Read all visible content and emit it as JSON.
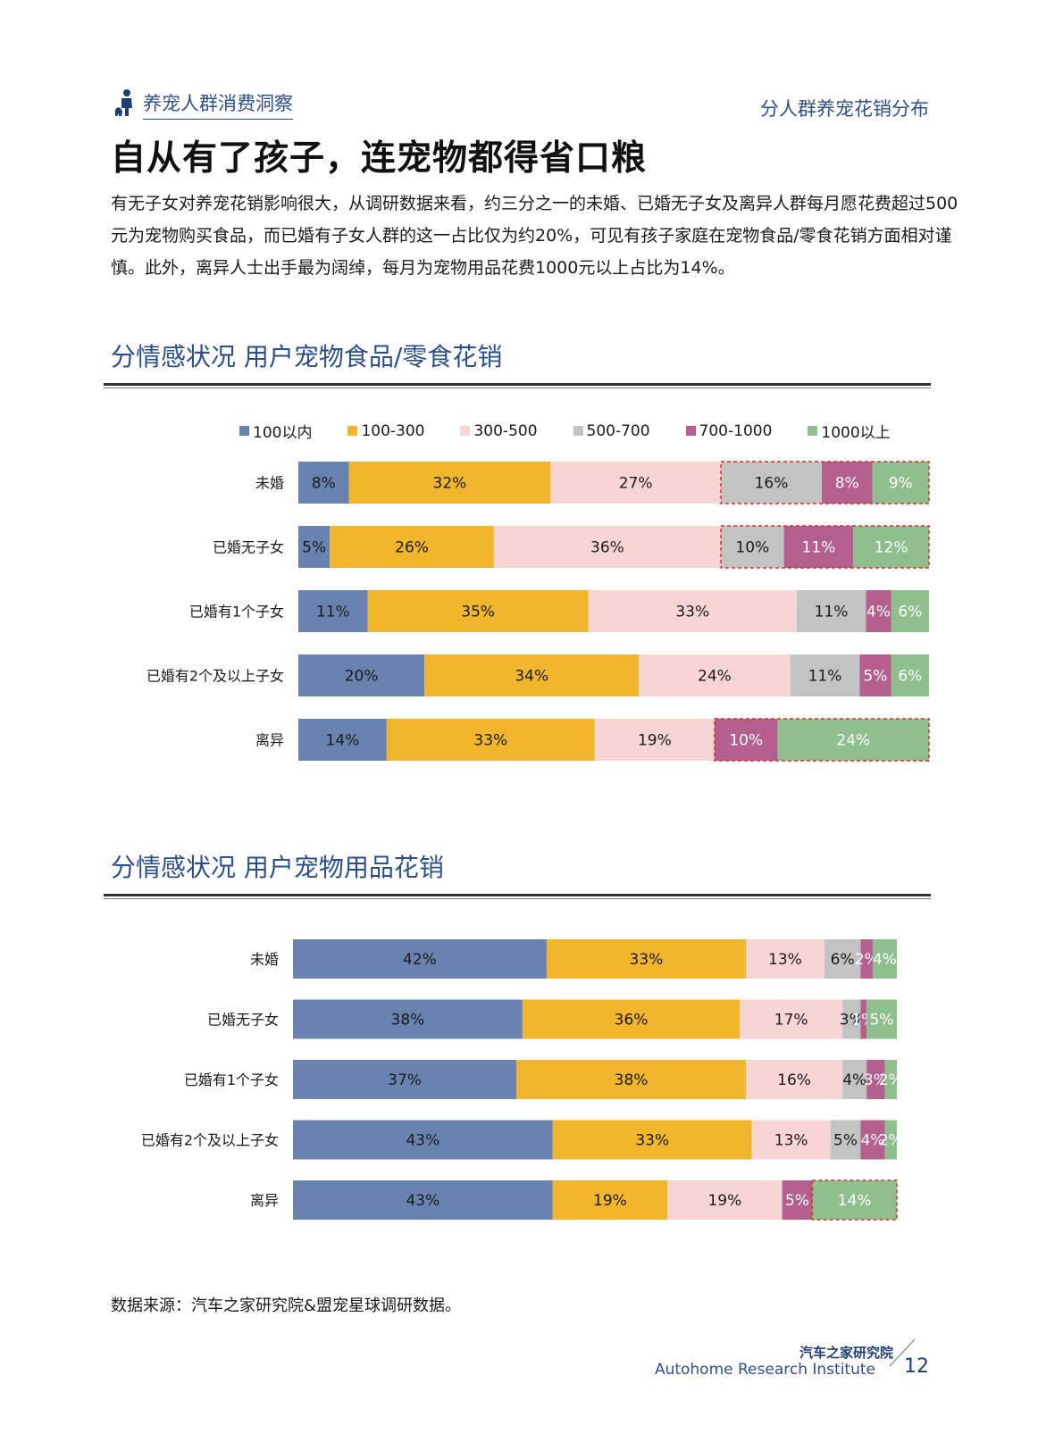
{
  "header": {
    "section_label": "养宠人群消费洞察",
    "right_label": "分人群养宠花销分布"
  },
  "headline": "自从有了孩子，连宠物都得省口粮",
  "intro_text": "有无子女对养宠花销影响很大，从调研数据来看，约三分之一的未婚、已婚无子女及离异人群每月愿花费超过500元为宠物购买食品，而已婚有子女人群的这一占比仅为约20%，可见有孩子家庭在宠物食品/零食花销方面相对谨慎。此外，离异人士出手最为阔绰，每月为宠物用品花费1000元以上占比为14%。",
  "colors": {
    "c1": "#6983b0",
    "c2": "#f2b62d",
    "c3": "#f8d5d5",
    "c4": "#c3c3c3",
    "c5": "#b45f8e",
    "c6": "#8fbf8c",
    "title": "#2a4f8c",
    "highlight": "#d9312b"
  },
  "chart_data": [
    {
      "type": "bar",
      "orientation": "horizontal",
      "stacked": true,
      "title": "分情感状况  用户宠物食品/零食花销",
      "categories": [
        "未婚",
        "已婚无子女",
        "已婚有1个子女",
        "已婚有2个及以上子女",
        "离异"
      ],
      "series": [
        {
          "name": "100以内",
          "values": [
            8,
            5,
            11,
            20,
            14
          ]
        },
        {
          "name": "100-300",
          "values": [
            32,
            26,
            35,
            34,
            33
          ]
        },
        {
          "name": "300-500",
          "values": [
            27,
            36,
            33,
            24,
            19
          ]
        },
        {
          "name": "500-700",
          "values": [
            16,
            10,
            11,
            11,
            0
          ]
        },
        {
          "name": "700-1000",
          "values": [
            8,
            11,
            4,
            5,
            10
          ]
        },
        {
          "name": "1000以上",
          "values": [
            9,
            12,
            6,
            6,
            24
          ]
        }
      ],
      "legend_position": "top",
      "highlighted_rows": [
        "未婚",
        "已婚无子女",
        "离异"
      ]
    },
    {
      "type": "bar",
      "orientation": "horizontal",
      "stacked": true,
      "title": "分情感状况  用户宠物用品花销",
      "categories": [
        "未婚",
        "已婚无子女",
        "已婚有1个子女",
        "已婚有2个及以上子女",
        "离异"
      ],
      "series": [
        {
          "name": "100以内",
          "values": [
            42,
            38,
            37,
            43,
            43
          ]
        },
        {
          "name": "100-300",
          "values": [
            33,
            36,
            38,
            33,
            19
          ]
        },
        {
          "name": "300-500",
          "values": [
            13,
            17,
            16,
            13,
            19
          ]
        },
        {
          "name": "500-700",
          "values": [
            6,
            3,
            4,
            5,
            0
          ]
        },
        {
          "name": "700-1000",
          "values": [
            2,
            1,
            3,
            4,
            5
          ]
        },
        {
          "name": "1000以上",
          "values": [
            4,
            5,
            2,
            2,
            14
          ]
        }
      ],
      "highlighted_rows": [
        "离异"
      ]
    }
  ],
  "footer": {
    "source": "数据来源：汽车之家研究院&盟宠星球调研数据。",
    "logo_cn": "汽车之家研究院",
    "logo_en": "Autohome Research Institute",
    "page_number": "12"
  }
}
